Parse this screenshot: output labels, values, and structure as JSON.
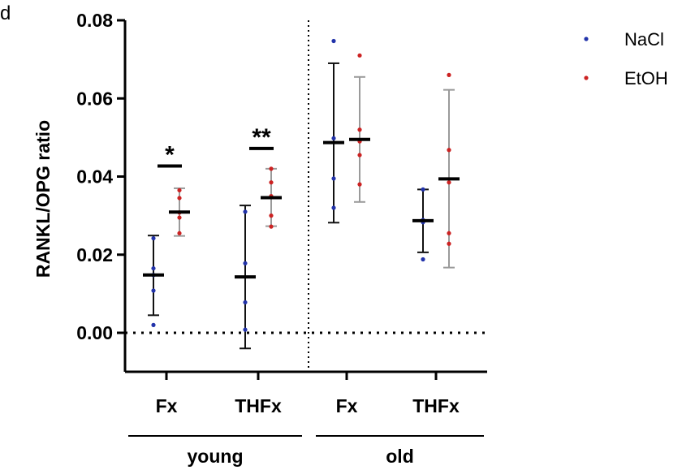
{
  "panel_letter": "d",
  "chart_data": {
    "type": "scatter",
    "title": "",
    "ylabel": "RANKL/OPG ratio",
    "xlabel": "",
    "ylim": [
      0,
      0.08
    ],
    "y_ticks": [
      "0.00",
      "0.02",
      "0.04",
      "0.06",
      "0.08"
    ],
    "y_tick_values": [
      0,
      0.02,
      0.04,
      0.06,
      0.08
    ],
    "categories": [
      "Fx",
      "THFx",
      "Fx",
      "THFx"
    ],
    "groups": [
      {
        "label": "young",
        "categories": [
          0,
          1
        ]
      },
      {
        "label": "old",
        "categories": [
          2,
          3
        ]
      }
    ],
    "reference_line": 0,
    "separator": "dotted vertical line between young and old",
    "legend": {
      "position": "top-right",
      "entries": [
        "NaCl",
        "EtOH"
      ]
    },
    "series": [
      {
        "name": "NaCl",
        "color": "#2233aa",
        "mean": [
          0.0148,
          0.0143,
          0.0487,
          0.0287
        ],
        "sd_low": [
          0.0045,
          -0.004,
          0.0282,
          0.0206
        ],
        "sd_high": [
          0.0249,
          0.0326,
          0.069,
          0.0367
        ],
        "points": [
          [
            0.0242,
            0.0165,
            0.0148,
            0.0108,
            0.002
          ],
          [
            0.031,
            0.0178,
            0.0078,
            0.0008
          ],
          [
            0.0747,
            0.0498,
            0.0395,
            0.032
          ],
          [
            0.0367,
            0.0289,
            0.0286,
            0.0283,
            0.0188
          ]
        ]
      },
      {
        "name": "EtOH",
        "color": "#cc2222",
        "mean": [
          0.0309,
          0.0346,
          0.0495,
          0.0394
        ],
        "sd_low": [
          0.0248,
          0.0273,
          0.0335,
          0.0167
        ],
        "sd_high": [
          0.037,
          0.042,
          0.0655,
          0.0622
        ],
        "points": [
          [
            0.0365,
            0.0345,
            0.0308,
            0.0295,
            0.0255
          ],
          [
            0.042,
            0.0385,
            0.035,
            0.03,
            0.0272
          ],
          [
            0.071,
            0.052,
            0.049,
            0.0455,
            0.038
          ],
          [
            0.066,
            0.0468,
            0.0385,
            0.0255,
            0.0228
          ]
        ]
      }
    ],
    "annotations": [
      {
        "text": "*",
        "category": 0,
        "y": 0.0427
      },
      {
        "text": "**",
        "category": 1,
        "y": 0.0472
      }
    ]
  }
}
